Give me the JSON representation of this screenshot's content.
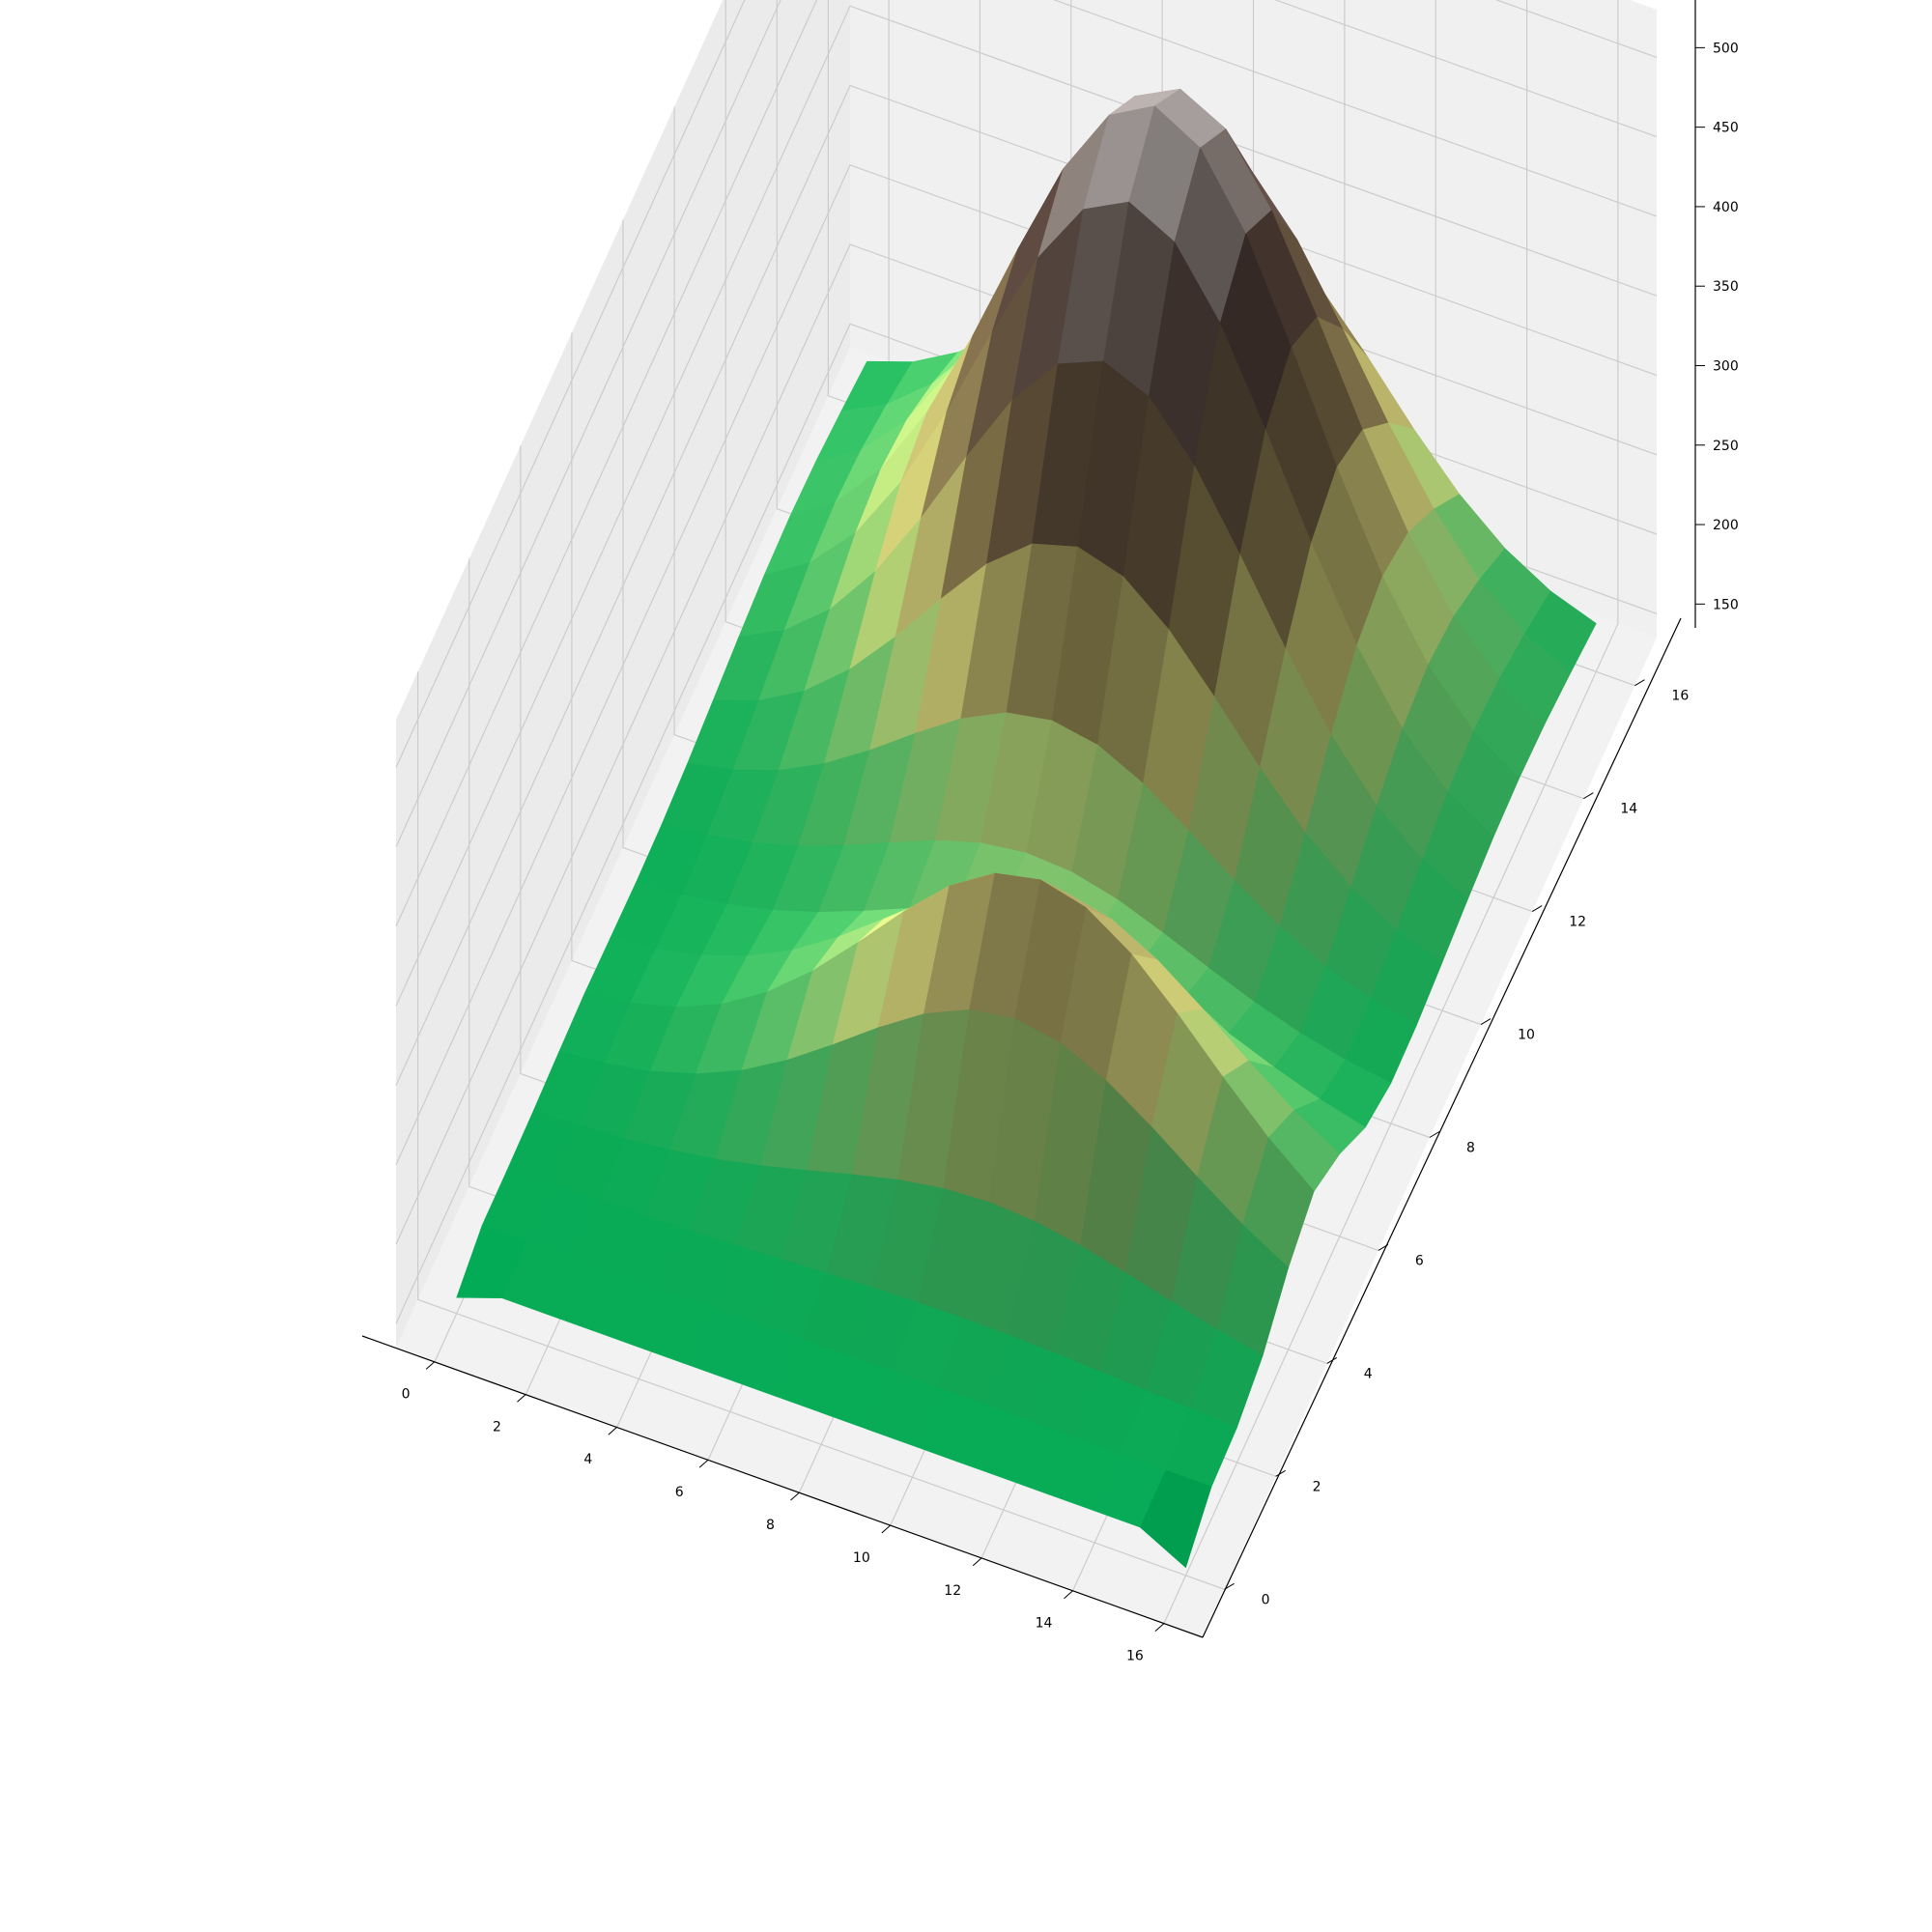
{
  "chart_data": {
    "type": "surface3d",
    "title": "",
    "xlabel": "",
    "ylabel": "",
    "zlabel": "",
    "grid": true,
    "colormap": "terrain",
    "x_ticks": [
      "0",
      "2",
      "4",
      "6",
      "8",
      "10",
      "12",
      "14",
      "16"
    ],
    "y_ticks": [
      "0",
      "2",
      "4",
      "6",
      "8",
      "10",
      "12",
      "14",
      "16"
    ],
    "z_ticks": [
      "150",
      "200",
      "250",
      "300",
      "350",
      "400",
      "450",
      "500"
    ],
    "xlim": [
      -0.85,
      16.85
    ],
    "ylim": [
      -0.85,
      16.85
    ],
    "zlim": [
      135,
      530
    ],
    "surface": {
      "grid_x": [
        0,
        1,
        2,
        3,
        4,
        5,
        6,
        7,
        8,
        9,
        10,
        11,
        12,
        13,
        14,
        15,
        16
      ],
      "grid_y": [
        0,
        1,
        2,
        3,
        4,
        5,
        6,
        7,
        8,
        9,
        10,
        11,
        12,
        13,
        14,
        15,
        16
      ],
      "description_note_values_are_z": true,
      "peak_center": [
        8,
        13
      ],
      "peak_height": 515,
      "ridge_height": 330,
      "edge_low": 155
    }
  }
}
